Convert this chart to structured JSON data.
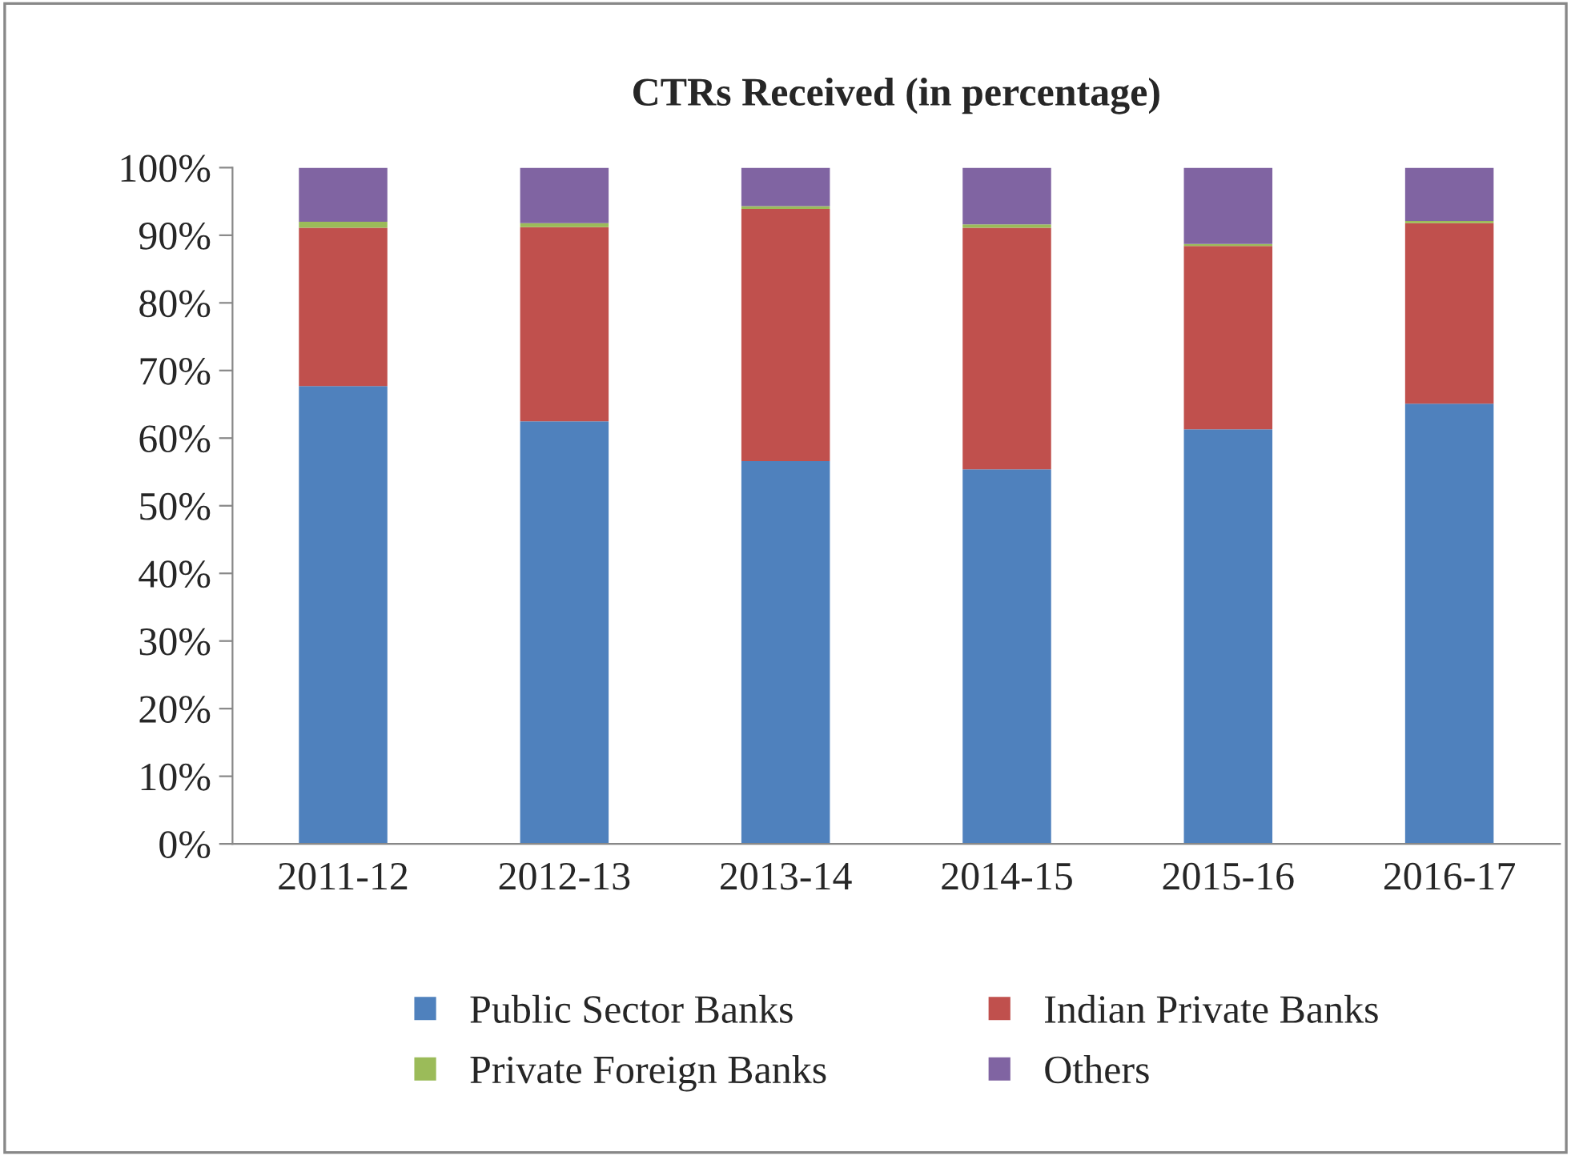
{
  "chart_data": {
    "type": "bar",
    "title": "CTRs Received (in percentage)",
    "stacked": true,
    "categories": [
      "2011-12",
      "2012-13",
      "2013-14",
      "2014-15",
      "2015-16",
      "2016-17"
    ],
    "series": [
      {
        "name": "Public Sector Banks",
        "color": "#4f81bd",
        "values": [
          67.7,
          62.5,
          56.6,
          55.4,
          61.3,
          65.1
        ]
      },
      {
        "name": "Indian Private Banks",
        "color": "#c0504d",
        "values": [
          23.4,
          28.7,
          37.3,
          35.7,
          27.1,
          26.7
        ]
      },
      {
        "name": "Private Foreign Banks",
        "color": "#9bbb59",
        "values": [
          0.9,
          0.6,
          0.4,
          0.5,
          0.3,
          0.3
        ]
      },
      {
        "name": "Others",
        "color": "#8064a2",
        "values": [
          8.0,
          8.2,
          5.7,
          8.4,
          11.3,
          7.9
        ]
      }
    ],
    "ylim": [
      0,
      100
    ],
    "yticks": [
      {
        "value": 0,
        "label": "0%"
      },
      {
        "value": 10,
        "label": "10%"
      },
      {
        "value": 20,
        "label": "20%"
      },
      {
        "value": 30,
        "label": "30%"
      },
      {
        "value": 40,
        "label": "40%"
      },
      {
        "value": 50,
        "label": "50%"
      },
      {
        "value": 60,
        "label": "60%"
      },
      {
        "value": 70,
        "label": "70%"
      },
      {
        "value": 80,
        "label": "80%"
      },
      {
        "value": 90,
        "label": "90%"
      },
      {
        "value": 100,
        "label": "100%"
      }
    ],
    "grid": false,
    "legend": "bottom"
  }
}
